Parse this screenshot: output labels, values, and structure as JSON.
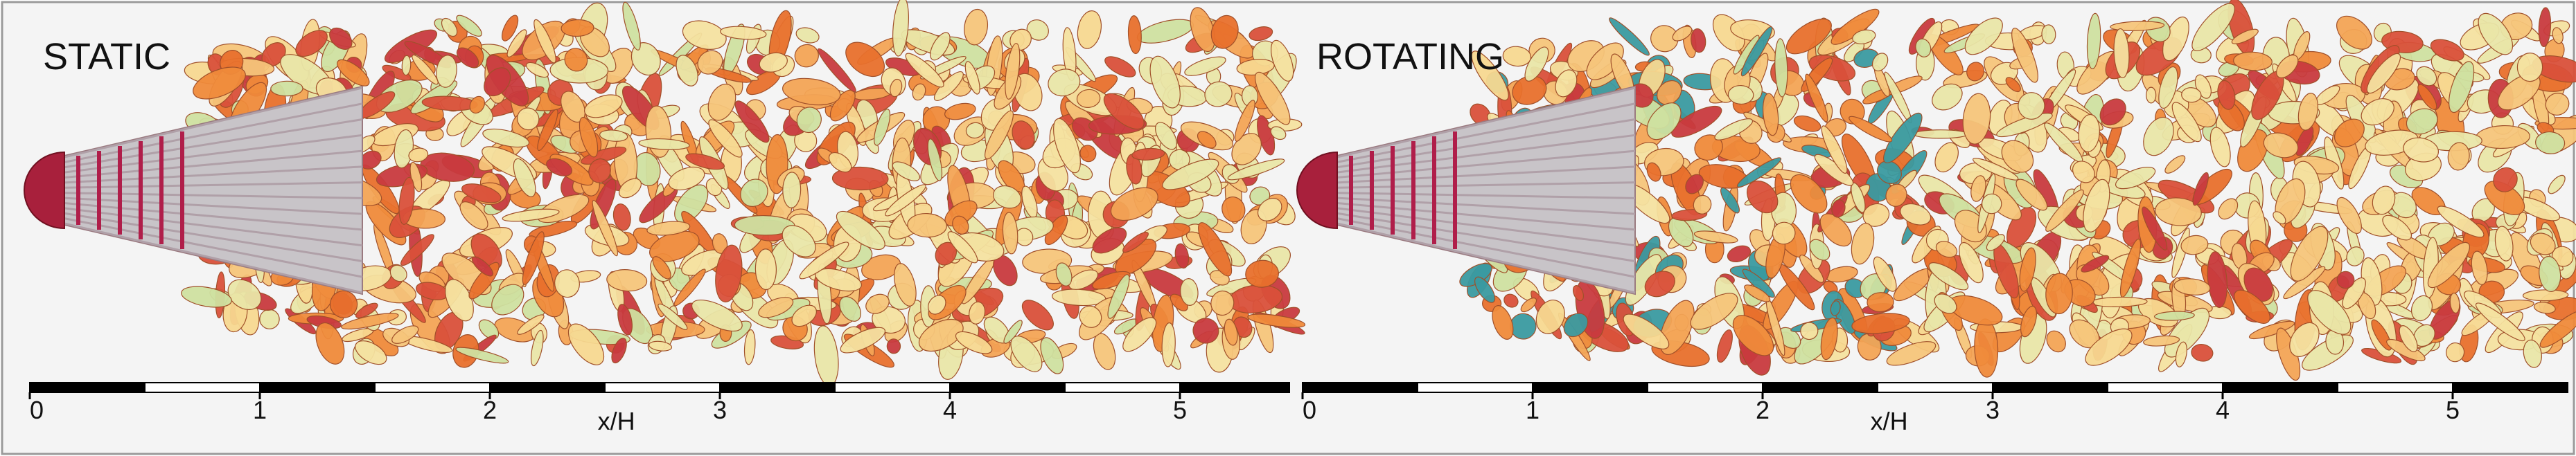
{
  "panels": [
    {
      "title": "STATIC",
      "axis": {
        "ticks": [
          0,
          1,
          2,
          3,
          4,
          5
        ],
        "label": "x/H"
      }
    },
    {
      "title": "ROTATING",
      "axis": {
        "ticks": [
          0,
          1,
          2,
          3,
          4,
          5
        ],
        "label": "x/H"
      }
    }
  ]
}
